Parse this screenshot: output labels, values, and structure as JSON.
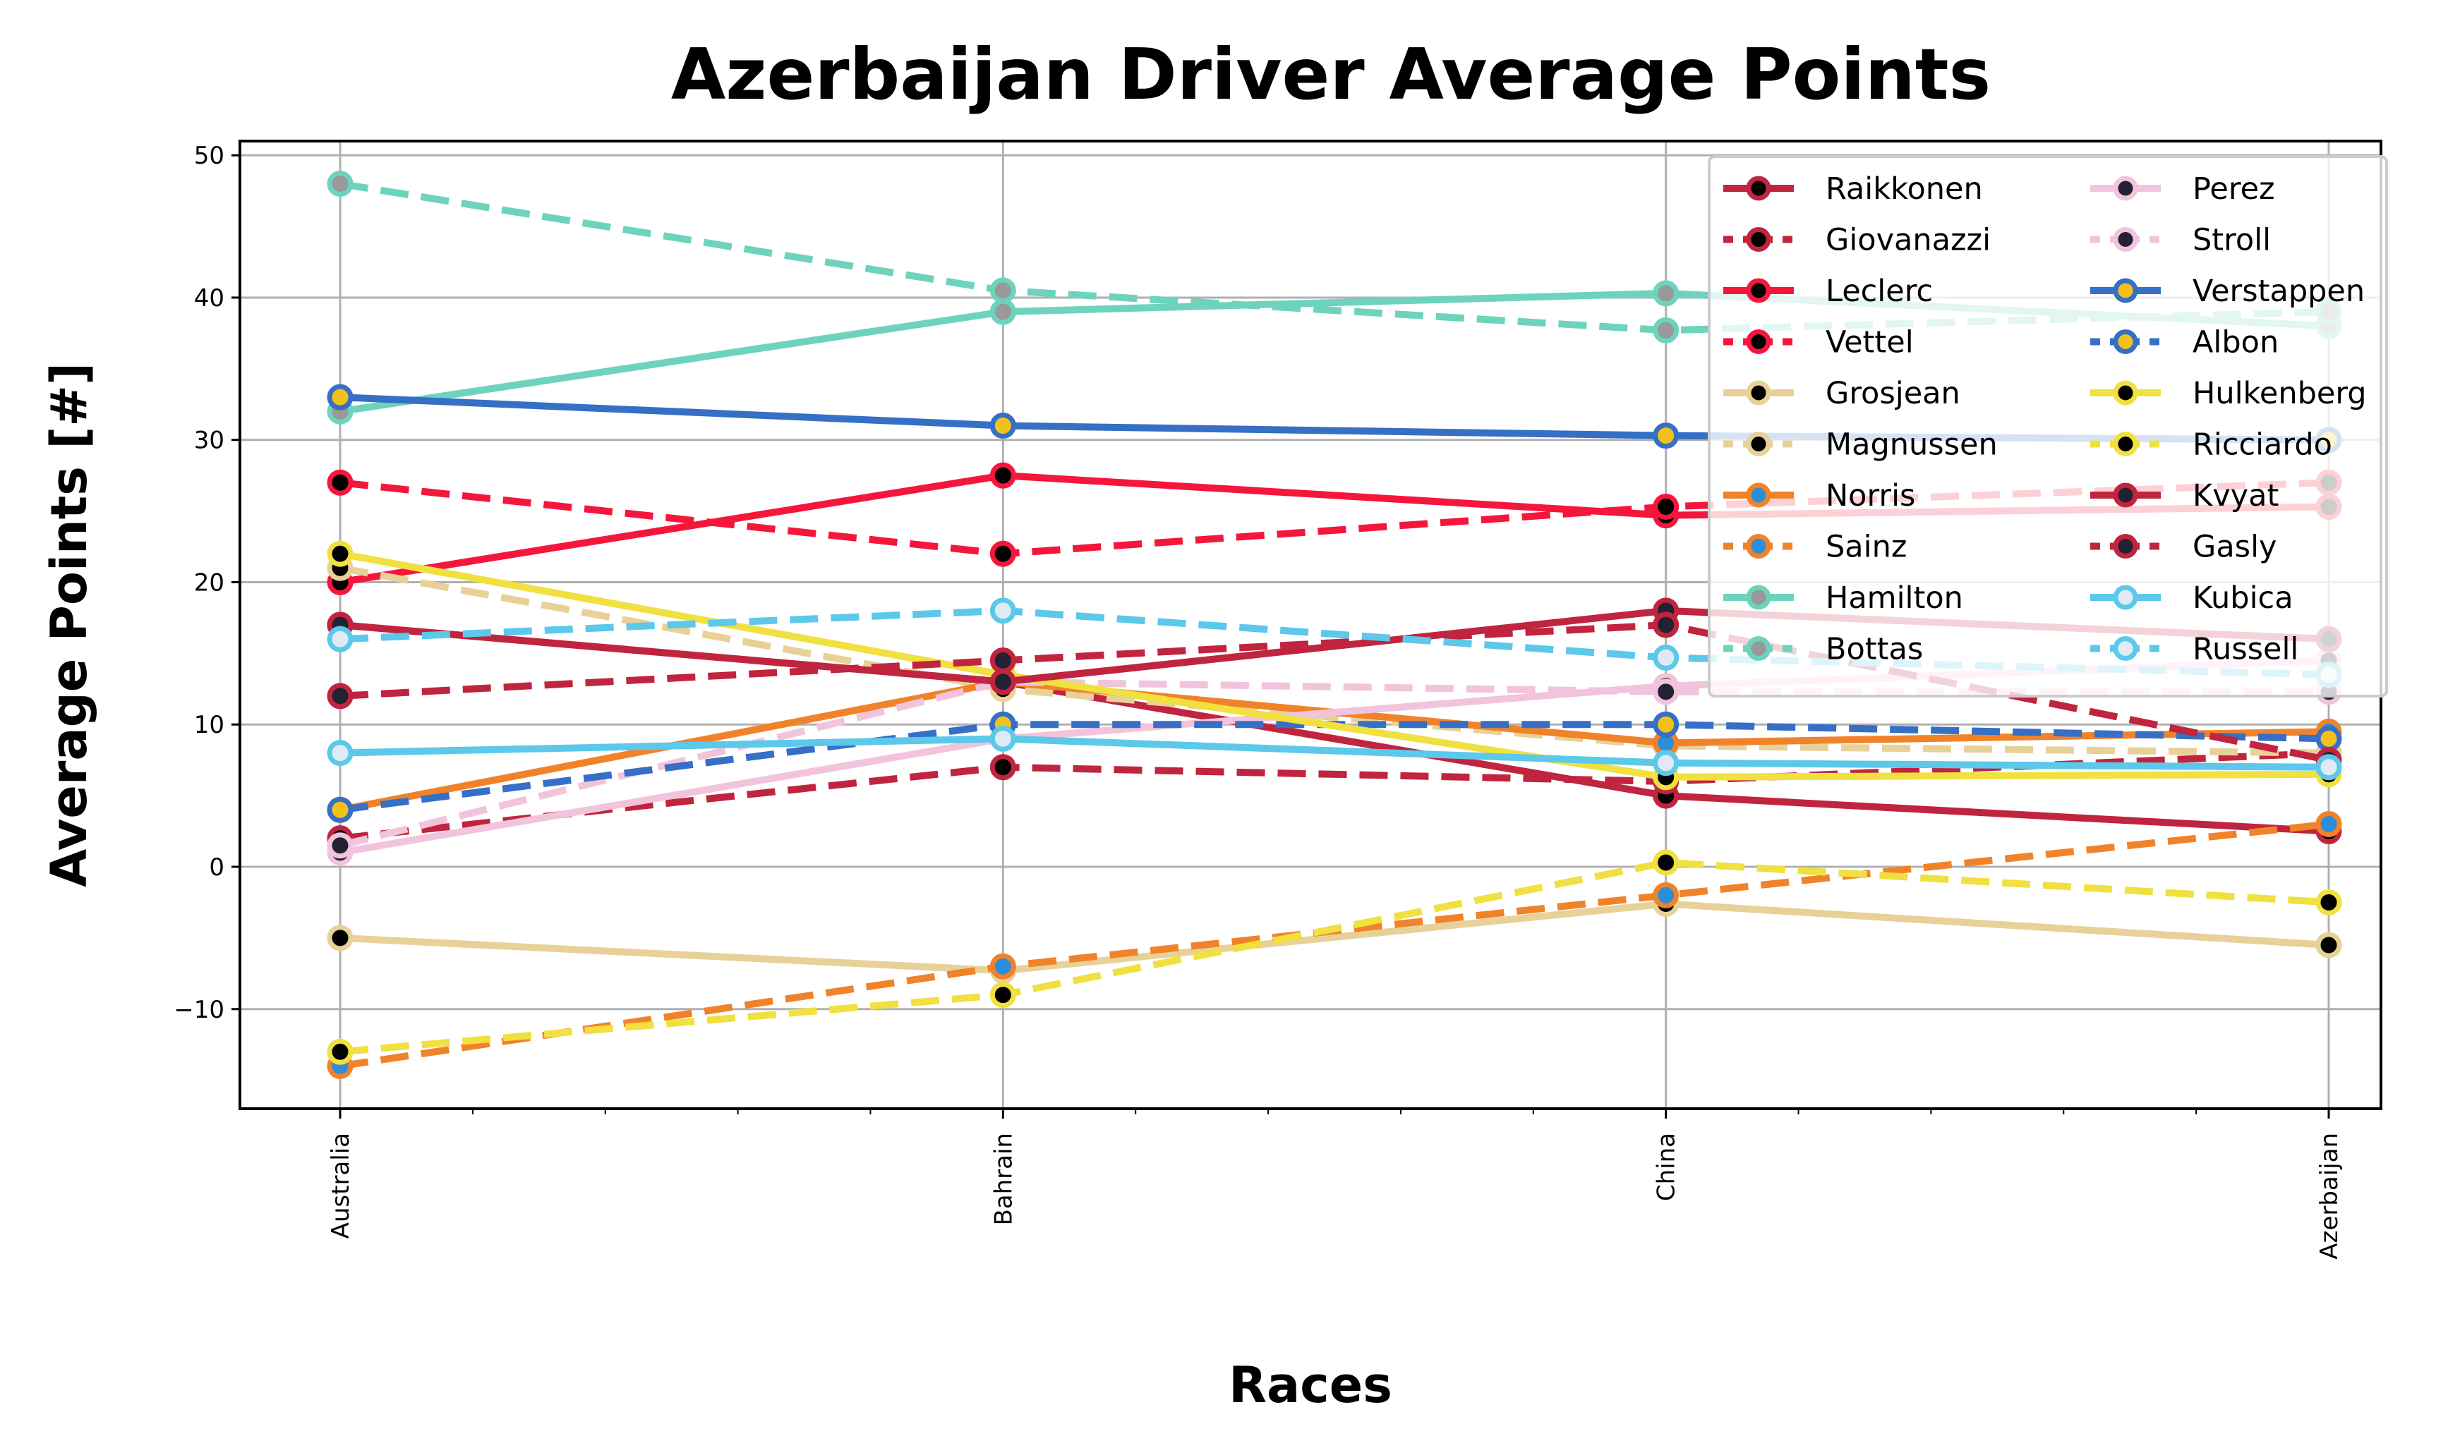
{
  "chart_data": {
    "type": "line",
    "title": "Azerbaijan Driver Average Points",
    "xlabel": "Races",
    "ylabel": "Average Points [#]",
    "categories": [
      "Australia",
      "Bahrain",
      "China",
      "Azerbaijan"
    ],
    "ylim": [
      -17,
      51
    ],
    "yticks": [
      -10,
      0,
      10,
      20,
      30,
      40,
      50
    ],
    "grid": true,
    "legend": {
      "position": "top-right",
      "columns": 2
    },
    "series": [
      {
        "name": "Raikkonen",
        "color": "#c0243e",
        "dash": "solid",
        "marker_fill": "#000000",
        "values": [
          17,
          13,
          5,
          2.5
        ]
      },
      {
        "name": "Giovanazzi",
        "color": "#c0243e",
        "dash": "dashed",
        "marker_fill": "#000000",
        "values": [
          2,
          7,
          6,
          8
        ]
      },
      {
        "name": "Leclerc",
        "color": "#f5163c",
        "dash": "solid",
        "marker_fill": "#000000",
        "values": [
          20,
          27.5,
          24.7,
          25.3
        ]
      },
      {
        "name": "Vettel",
        "color": "#f5163c",
        "dash": "dashed",
        "marker_fill": "#000000",
        "values": [
          27,
          22,
          25.3,
          27
        ]
      },
      {
        "name": "Grosjean",
        "color": "#e8d198",
        "dash": "solid",
        "marker_fill": "#000000",
        "values": [
          -5,
          -7.3,
          -2.6,
          -5.5
        ]
      },
      {
        "name": "Magnussen",
        "color": "#e8d198",
        "dash": "dashed",
        "marker_fill": "#000000",
        "values": [
          21,
          12.5,
          8.5,
          8
        ]
      },
      {
        "name": "Norris",
        "color": "#f0832a",
        "dash": "solid",
        "marker_fill": "#2c8ed9",
        "values": [
          4,
          13,
          8.7,
          9.5
        ]
      },
      {
        "name": "Sainz",
        "color": "#f0832a",
        "dash": "dashed",
        "marker_fill": "#2c8ed9",
        "values": [
          -14,
          -7,
          -2,
          3
        ]
      },
      {
        "name": "Hamilton",
        "color": "#6dd3bc",
        "dash": "solid",
        "marker_fill": "#999999",
        "values": [
          32,
          39,
          40.3,
          38
        ]
      },
      {
        "name": "Bottas",
        "color": "#6dd3bc",
        "dash": "dashed",
        "marker_fill": "#999999",
        "values": [
          48,
          40.5,
          37.7,
          39
        ]
      },
      {
        "name": "Perez",
        "color": "#f2c4dc",
        "dash": "solid",
        "marker_fill": "#222233",
        "values": [
          1,
          9,
          12.7,
          14.5
        ]
      },
      {
        "name": "Stroll",
        "color": "#f2c4dc",
        "dash": "dashed",
        "marker_fill": "#222233",
        "values": [
          1.5,
          13,
          12.3,
          12.3
        ]
      },
      {
        "name": "Verstappen",
        "color": "#356fc6",
        "dash": "solid",
        "marker_fill": "#f2c21b",
        "values": [
          33,
          31,
          30.3,
          30
        ]
      },
      {
        "name": "Albon",
        "color": "#356fc6",
        "dash": "dashed",
        "marker_fill": "#f2c21b",
        "values": [
          4,
          10,
          10,
          9
        ]
      },
      {
        "name": "Hulkenberg",
        "color": "#f0e040",
        "dash": "solid",
        "marker_fill": "#000000",
        "values": [
          22,
          13.5,
          6.3,
          6.5
        ]
      },
      {
        "name": "Ricciardo",
        "color": "#f0e040",
        "dash": "dashed",
        "marker_fill": "#000000",
        "values": [
          -13,
          -9,
          0.3,
          -2.5
        ]
      },
      {
        "name": "Kvyat",
        "color": "#c0243e",
        "dash": "solid",
        "marker_fill": "#222233",
        "values": [
          17,
          13,
          18,
          16
        ]
      },
      {
        "name": "Gasly",
        "color": "#c0243e",
        "dash": "dashed",
        "marker_fill": "#222233",
        "values": [
          12,
          14.5,
          17,
          7.5
        ]
      },
      {
        "name": "Kubica",
        "color": "#5cc8ea",
        "dash": "solid",
        "marker_fill": "#dfeaf5",
        "values": [
          8,
          9,
          7.3,
          7
        ]
      },
      {
        "name": "Russell",
        "color": "#5cc8ea",
        "dash": "dashed",
        "marker_fill": "#dfeaf5",
        "values": [
          16,
          18,
          14.7,
          13.5
        ]
      }
    ]
  }
}
